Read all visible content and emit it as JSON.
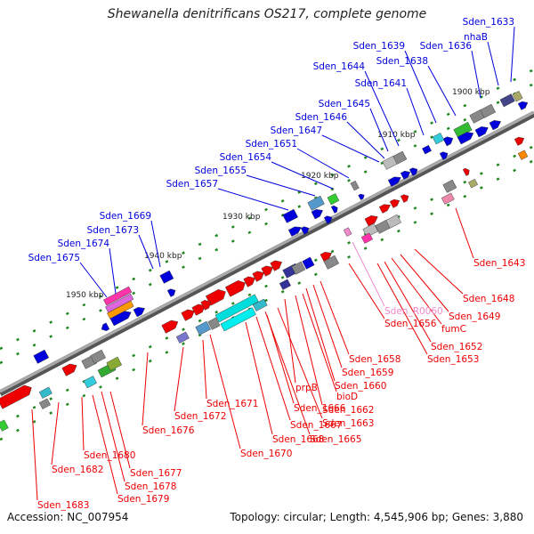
{
  "title": "Shewanella denitrificans OS217, complete genome",
  "footer": {
    "accession": "Accession: NC_007954",
    "topology": "Topology: circular; Length: 4,545,906 bp; Genes: 3,880"
  },
  "colors": {
    "blue": "#0000dd",
    "red": "#ee0000",
    "pink": "#ee88cc",
    "backbone": "#888888"
  },
  "kbp_labels": [
    "1900 kbp",
    "1910 kbp",
    "1920 kbp",
    "1930 kbp",
    "1940 kbp",
    "1950 kbp"
  ],
  "blue_labels": [
    "Sden_1633",
    "nhaB",
    "Sden_1636",
    "Sden_1638",
    "Sden_1639",
    "Sden_1641",
    "Sden_1644",
    "Sden_1645",
    "Sden_1646",
    "Sden_1647",
    "Sden_1651",
    "Sden_1654",
    "Sden_1655",
    "Sden_1657",
    "Sden_1669",
    "Sden_1673",
    "Sden_1674",
    "Sden_1675"
  ],
  "red_labels": [
    "Sden_1643",
    "Sden_1648",
    "Sden_1649",
    "fumC",
    "Sden_1652",
    "Sden_1653",
    "Sden_1656",
    "Sden_1658",
    "Sden_1659",
    "Sden_1660",
    "Sden_1662",
    "prpB",
    "bioD",
    "Sden_1663",
    "Sden_1665",
    "Sden_1666",
    "Sden_1667",
    "Sden_1668",
    "Sden_1670",
    "Sden_1671",
    "Sden_1672",
    "Sden_1676",
    "Sden_1677",
    "Sden_1678",
    "Sden_1679",
    "Sden_1680",
    "Sden_1682",
    "Sden_1683"
  ],
  "pink_labels": [
    "Sden_R0060"
  ]
}
